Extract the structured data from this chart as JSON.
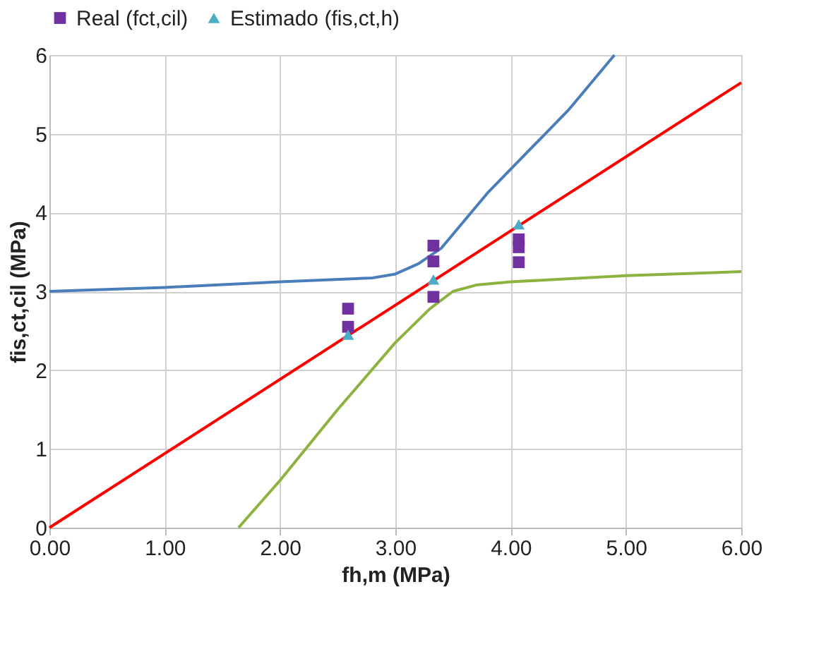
{
  "chart_data": {
    "type": "scatter",
    "xlabel": "fh,m (MPa)",
    "ylabel": "fis,ct,cil (MPa)",
    "xlim": [
      0,
      6
    ],
    "ylim": [
      0,
      6
    ],
    "xticks": [
      {
        "value": 0,
        "label": "0.00"
      },
      {
        "value": 1,
        "label": "1.00"
      },
      {
        "value": 2,
        "label": "2.00"
      },
      {
        "value": 3,
        "label": "3.00"
      },
      {
        "value": 4,
        "label": "4.00"
      },
      {
        "value": 5,
        "label": "5.00"
      },
      {
        "value": 6,
        "label": "6.00"
      }
    ],
    "yticks": [
      0,
      1,
      2,
      3,
      4,
      5,
      6
    ],
    "grid": true,
    "legend": "top",
    "series": [
      {
        "type": "line",
        "color": "#ff0000",
        "marker": "none",
        "x": [
          0,
          6
        ],
        "values": [
          0,
          5.65
        ]
      },
      {
        "type": "line",
        "color": "#4a7ebb",
        "marker": "none",
        "x": [
          0,
          1,
          2,
          2.8,
          3.0,
          3.2,
          3.4,
          3.6,
          3.8,
          4.0,
          4.5,
          4.9
        ],
        "values": [
          3.0,
          3.05,
          3.12,
          3.17,
          3.22,
          3.35,
          3.55,
          3.9,
          4.25,
          4.55,
          5.3,
          6.0
        ]
      },
      {
        "type": "line",
        "color": "#8cb33f",
        "marker": "none",
        "x": [
          1.64,
          2.0,
          2.5,
          3.0,
          3.3,
          3.5,
          3.7,
          4.0,
          5.0,
          6.0
        ],
        "values": [
          0,
          0.6,
          1.5,
          2.35,
          2.78,
          3.0,
          3.08,
          3.12,
          3.2,
          3.25
        ]
      },
      {
        "name": "Real (fct,cil)",
        "color": "#7030a0",
        "marker": "square",
        "x": [
          2.59,
          2.59,
          3.33,
          3.33,
          3.33,
          4.07,
          4.07,
          4.07
        ],
        "values": [
          2.78,
          2.55,
          3.58,
          3.38,
          2.93,
          3.66,
          3.56,
          3.37
        ]
      },
      {
        "name": "Estimado (fis,ct,h)",
        "color": "#4bacc6",
        "marker": "triangle",
        "x": [
          2.59,
          3.33,
          4.07
        ],
        "values": [
          2.45,
          3.15,
          3.85
        ]
      }
    ]
  }
}
